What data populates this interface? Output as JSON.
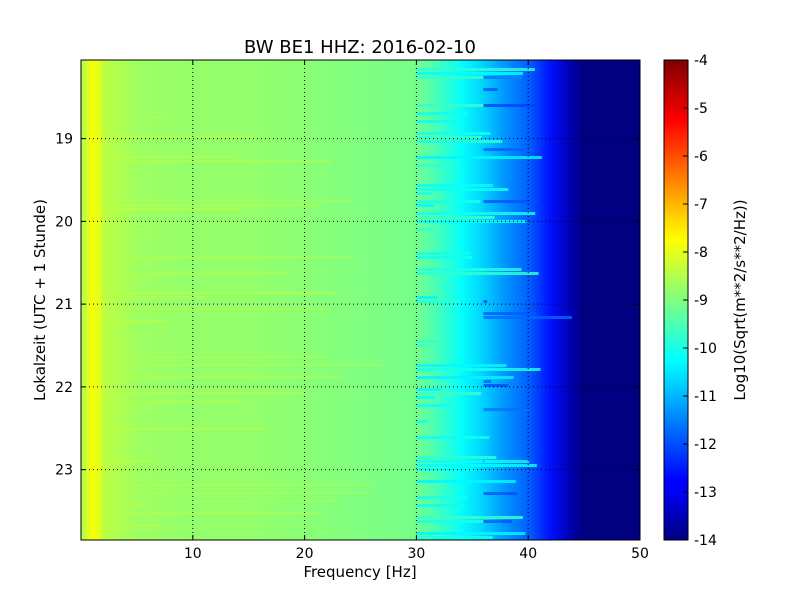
{
  "chart_data": {
    "type": "heatmap",
    "title": "BW BE1 HHZ: 2016-02-10",
    "xlabel": "Frequency [Hz]",
    "ylabel": "Lokalzeit (UTC + 1 Stunde)",
    "xlim": [
      0,
      50
    ],
    "ylim": [
      18.05,
      23.85
    ],
    "y_inverted": true,
    "x_ticks": [
      "10",
      "20",
      "30",
      "40",
      "50"
    ],
    "x_tick_values": [
      10,
      20,
      30,
      40,
      50
    ],
    "y_ticks": [
      "19",
      "20",
      "21",
      "22",
      "23"
    ],
    "y_tick_values": [
      19,
      20,
      21,
      22,
      23
    ],
    "grid": true,
    "colorbar": {
      "label": "Log10(Sqrt(m**2/s**2/Hz))",
      "min": -14,
      "max": -4,
      "ticks": [
        "-4",
        "-5",
        "-6",
        "-7",
        "-8",
        "-9",
        "-10",
        "-11",
        "-12",
        "-13",
        "-14"
      ],
      "tick_values": [
        -4,
        -5,
        -6,
        -7,
        -8,
        -9,
        -10,
        -11,
        -12,
        -13,
        -14
      ],
      "colormap": "jet"
    },
    "spectrum_profile": {
      "frequency_hz": [
        0,
        1,
        2,
        5,
        10,
        15,
        20,
        25,
        30,
        32,
        34,
        36,
        38,
        40,
        42,
        44,
        45,
        50
      ],
      "level_log10": [
        -8.6,
        -7.8,
        -8.4,
        -8.7,
        -8.8,
        -8.8,
        -8.9,
        -9.0,
        -9.1,
        -9.6,
        -10.2,
        -10.7,
        -11.3,
        -11.8,
        -12.6,
        -13.6,
        -14.0,
        -14.0
      ]
    }
  }
}
